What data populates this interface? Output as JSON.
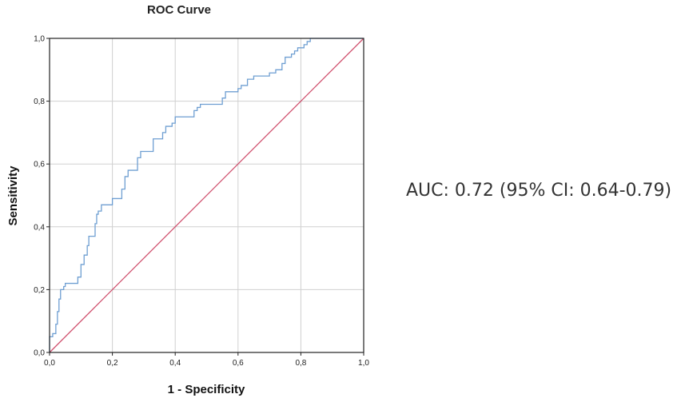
{
  "chart_data": {
    "type": "line",
    "title": "ROC Curve",
    "xlabel": "1 - Specificity",
    "ylabel": "Sensitivity",
    "xlim": [
      0,
      1
    ],
    "ylim": [
      0,
      1
    ],
    "x_ticks": [
      "0,0",
      "0,2",
      "0,4",
      "0,6",
      "0,8",
      "1,0"
    ],
    "y_ticks": [
      "0,0",
      "0,2",
      "0,4",
      "0,6",
      "0,8",
      "1,0"
    ],
    "grid": true,
    "series": [
      {
        "color": "#6f9fd2",
        "step": true,
        "points": [
          [
            0.0,
            0.0
          ],
          [
            0.0,
            0.05
          ],
          [
            0.01,
            0.05
          ],
          [
            0.01,
            0.06
          ],
          [
            0.02,
            0.06
          ],
          [
            0.02,
            0.09
          ],
          [
            0.025,
            0.09
          ],
          [
            0.025,
            0.13
          ],
          [
            0.03,
            0.13
          ],
          [
            0.03,
            0.17
          ],
          [
            0.035,
            0.17
          ],
          [
            0.035,
            0.2
          ],
          [
            0.045,
            0.2
          ],
          [
            0.045,
            0.21
          ],
          [
            0.05,
            0.21
          ],
          [
            0.05,
            0.22
          ],
          [
            0.09,
            0.22
          ],
          [
            0.09,
            0.24
          ],
          [
            0.1,
            0.24
          ],
          [
            0.1,
            0.28
          ],
          [
            0.11,
            0.28
          ],
          [
            0.11,
            0.31
          ],
          [
            0.12,
            0.31
          ],
          [
            0.12,
            0.34
          ],
          [
            0.125,
            0.34
          ],
          [
            0.125,
            0.37
          ],
          [
            0.145,
            0.37
          ],
          [
            0.145,
            0.41
          ],
          [
            0.15,
            0.41
          ],
          [
            0.15,
            0.44
          ],
          [
            0.155,
            0.44
          ],
          [
            0.155,
            0.45
          ],
          [
            0.165,
            0.45
          ],
          [
            0.165,
            0.47
          ],
          [
            0.2,
            0.47
          ],
          [
            0.2,
            0.49
          ],
          [
            0.23,
            0.49
          ],
          [
            0.23,
            0.52
          ],
          [
            0.24,
            0.52
          ],
          [
            0.24,
            0.56
          ],
          [
            0.25,
            0.56
          ],
          [
            0.25,
            0.58
          ],
          [
            0.28,
            0.58
          ],
          [
            0.28,
            0.62
          ],
          [
            0.29,
            0.62
          ],
          [
            0.29,
            0.64
          ],
          [
            0.33,
            0.64
          ],
          [
            0.33,
            0.68
          ],
          [
            0.36,
            0.68
          ],
          [
            0.36,
            0.7
          ],
          [
            0.37,
            0.7
          ],
          [
            0.37,
            0.72
          ],
          [
            0.39,
            0.72
          ],
          [
            0.39,
            0.73
          ],
          [
            0.4,
            0.73
          ],
          [
            0.4,
            0.75
          ],
          [
            0.46,
            0.75
          ],
          [
            0.46,
            0.77
          ],
          [
            0.47,
            0.77
          ],
          [
            0.47,
            0.78
          ],
          [
            0.48,
            0.78
          ],
          [
            0.48,
            0.79
          ],
          [
            0.55,
            0.79
          ],
          [
            0.55,
            0.81
          ],
          [
            0.56,
            0.81
          ],
          [
            0.56,
            0.83
          ],
          [
            0.6,
            0.83
          ],
          [
            0.6,
            0.84
          ],
          [
            0.61,
            0.84
          ],
          [
            0.61,
            0.85
          ],
          [
            0.63,
            0.85
          ],
          [
            0.63,
            0.87
          ],
          [
            0.65,
            0.87
          ],
          [
            0.65,
            0.88
          ],
          [
            0.7,
            0.88
          ],
          [
            0.7,
            0.89
          ],
          [
            0.72,
            0.89
          ],
          [
            0.72,
            0.9
          ],
          [
            0.74,
            0.9
          ],
          [
            0.74,
            0.92
          ],
          [
            0.75,
            0.92
          ],
          [
            0.75,
            0.94
          ],
          [
            0.77,
            0.94
          ],
          [
            0.77,
            0.95
          ],
          [
            0.78,
            0.95
          ],
          [
            0.78,
            0.96
          ],
          [
            0.79,
            0.96
          ],
          [
            0.79,
            0.97
          ],
          [
            0.81,
            0.97
          ],
          [
            0.81,
            0.98
          ],
          [
            0.82,
            0.98
          ],
          [
            0.82,
            0.99
          ],
          [
            0.83,
            0.99
          ],
          [
            0.83,
            1.0
          ],
          [
            1.0,
            1.0
          ]
        ]
      },
      {
        "color": "#d0516e",
        "points": [
          [
            0,
            0
          ],
          [
            1,
            1
          ]
        ]
      }
    ],
    "annotation": "AUC: 0.72 (95% CI: 0.64-0.79)"
  },
  "colors": {
    "plot_border": "#222222",
    "grid": "#d0d0d0",
    "roc_curve": "#6f9fd2",
    "reference_line": "#d0516e"
  }
}
